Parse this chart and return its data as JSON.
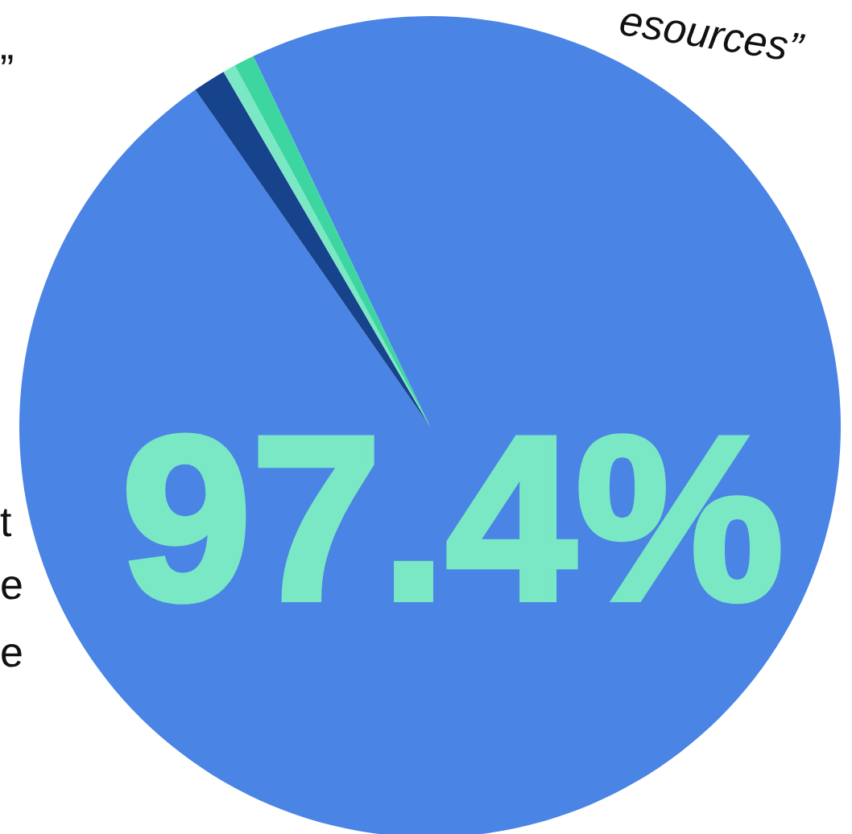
{
  "chart_data": {
    "type": "pie",
    "categories": [
      null,
      null,
      null,
      null
    ],
    "values": [
      97.4,
      1.3,
      0.5,
      0.8
    ],
    "colors": [
      "#4a84e4",
      "#17438c",
      "#7ae8c4",
      "#3dd6a0"
    ],
    "value_labels": [
      "97.4%",
      null,
      null,
      null
    ],
    "annotations": [
      "esources”",
      "”",
      "t",
      "e",
      "e"
    ],
    "legend": false
  }
}
